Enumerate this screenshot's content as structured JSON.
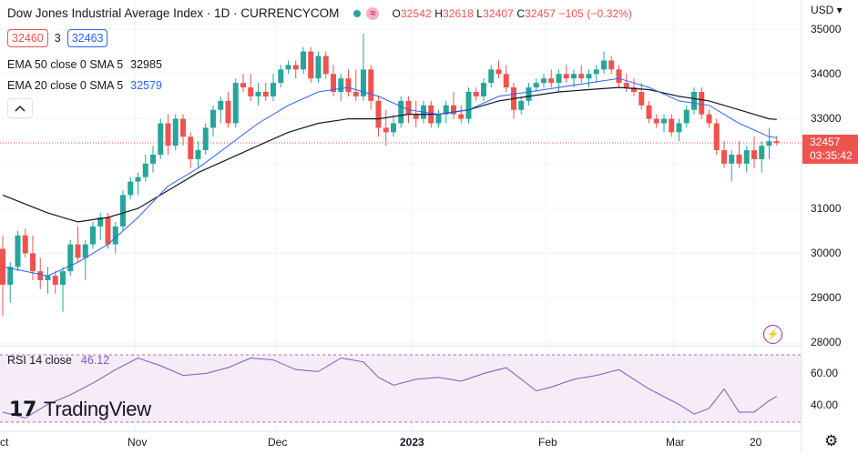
{
  "header": {
    "title": "Dow Jones Industrial Average Index · 1D · CURRENCYCOM",
    "badge": "≈",
    "open_label": "O",
    "open": "32542",
    "high_label": "H",
    "high": "32618",
    "low_label": "L",
    "low": "32407",
    "close_label": "C",
    "close": "32457",
    "change": "−105 (−0.32%)"
  },
  "trade": {
    "sell": "32460",
    "spread": "3",
    "buy": "32463"
  },
  "indicators": {
    "ema50_label": "EMA 50 close 0 SMA 5",
    "ema50_value": "32985",
    "ema20_label": "EMA 20 close 0 SMA 5",
    "ema20_value": "32579",
    "collapse_icon": "chevron-up-icon"
  },
  "price_axis": {
    "currency": "USD ▾",
    "ticks": [
      "35000",
      "34000",
      "33000",
      "31000",
      "30000",
      "29000",
      "28000"
    ],
    "tag_price": "32457",
    "tag_countdown": "03:35:42"
  },
  "rsi": {
    "label": "RSI 14 close",
    "value": "46.12",
    "ticks": [
      "60.00",
      "40.00"
    ]
  },
  "time_axis": {
    "labels": [
      "ct",
      "Nov",
      "Dec",
      "2023",
      "Feb",
      "Mar",
      "20"
    ]
  },
  "logo": {
    "mark": "17",
    "text": "TradingView"
  },
  "colors": {
    "up": "#26a69a",
    "down": "#ef5350",
    "ema20": "#2962ff",
    "ema50": "#131722",
    "rsi": "#7e57c2"
  },
  "icons": {
    "settings": "gear-icon",
    "replay": "lightning-icon"
  },
  "chart_data": {
    "type": "candlestick",
    "ylim": [
      28000,
      35000
    ],
    "candles_ohlc": [
      [
        30100,
        30400,
        28600,
        29300
      ],
      [
        29300,
        29800,
        28900,
        29700
      ],
      [
        29700,
        30500,
        29600,
        30400
      ],
      [
        30400,
        30550,
        29900,
        30000
      ],
      [
        30000,
        30400,
        29400,
        29600
      ],
      [
        29600,
        29900,
        29200,
        29400
      ],
      [
        29400,
        29700,
        29100,
        29500
      ],
      [
        29500,
        29600,
        29100,
        29300
      ],
      [
        29300,
        29700,
        28700,
        29600
      ],
      [
        29600,
        30300,
        29500,
        30200
      ],
      [
        30200,
        30600,
        29800,
        29900
      ],
      [
        29900,
        30300,
        29400,
        30200
      ],
      [
        30200,
        30700,
        30100,
        30600
      ],
      [
        30600,
        30900,
        30300,
        30800
      ],
      [
        30800,
        30900,
        30100,
        30200
      ],
      [
        30200,
        30700,
        30000,
        30600
      ],
      [
        30600,
        31400,
        30500,
        31300
      ],
      [
        31300,
        31700,
        31200,
        31600
      ],
      [
        31600,
        31800,
        31300,
        31700
      ],
      [
        31700,
        32200,
        31600,
        32000
      ],
      [
        32000,
        32400,
        31800,
        32200
      ],
      [
        32200,
        33000,
        32100,
        32900
      ],
      [
        32900,
        33100,
        32200,
        32400
      ],
      [
        32400,
        33100,
        32300,
        33000
      ],
      [
        33000,
        33100,
        32400,
        32600
      ],
      [
        32600,
        32700,
        31900,
        32100
      ],
      [
        32100,
        32500,
        31900,
        32300
      ],
      [
        32300,
        32900,
        32200,
        32800
      ],
      [
        32800,
        33300,
        32600,
        33200
      ],
      [
        33200,
        33500,
        32900,
        33400
      ],
      [
        33400,
        33600,
        32800,
        32900
      ],
      [
        32900,
        33900,
        32800,
        33800
      ],
      [
        33800,
        34000,
        33600,
        33700
      ],
      [
        33700,
        34000,
        33400,
        33500
      ],
      [
        33500,
        33800,
        33300,
        33600
      ],
      [
        33600,
        33800,
        33400,
        33500
      ],
      [
        33500,
        34000,
        33400,
        33800
      ],
      [
        33800,
        34200,
        33700,
        34100
      ],
      [
        34100,
        34300,
        34000,
        34200
      ],
      [
        34200,
        34300,
        33900,
        34100
      ],
      [
        34100,
        34600,
        34000,
        34500
      ],
      [
        34500,
        34600,
        33800,
        33900
      ],
      [
        33900,
        34500,
        33800,
        34400
      ],
      [
        34400,
        34500,
        33900,
        34000
      ],
      [
        34000,
        34200,
        33500,
        33600
      ],
      [
        33600,
        34000,
        33400,
        33900
      ],
      [
        33900,
        34100,
        33500,
        33600
      ],
      [
        33600,
        34100,
        33400,
        33500
      ],
      [
        33500,
        34900,
        33400,
        34100
      ],
      [
        34100,
        34200,
        33200,
        33400
      ],
      [
        33400,
        33500,
        32600,
        32800
      ],
      [
        32800,
        33200,
        32400,
        32700
      ],
      [
        32700,
        33100,
        32600,
        32900
      ],
      [
        32900,
        33500,
        32800,
        33400
      ],
      [
        33400,
        33500,
        32900,
        33100
      ],
      [
        33100,
        33400,
        32800,
        33000
      ],
      [
        33000,
        33400,
        32900,
        33300
      ],
      [
        33300,
        33400,
        32800,
        32900
      ],
      [
        32900,
        33200,
        32800,
        33100
      ],
      [
        33100,
        33400,
        32900,
        33300
      ],
      [
        33300,
        33600,
        33000,
        33100
      ],
      [
        33100,
        33300,
        32900,
        33000
      ],
      [
        33000,
        33700,
        32900,
        33600
      ],
      [
        33600,
        33700,
        33400,
        33500
      ],
      [
        33500,
        33900,
        33400,
        33800
      ],
      [
        33800,
        34200,
        33700,
        34100
      ],
      [
        34100,
        34300,
        33900,
        34000
      ],
      [
        34000,
        34200,
        33600,
        33700
      ],
      [
        33700,
        33800,
        33000,
        33200
      ],
      [
        33200,
        33500,
        33100,
        33400
      ],
      [
        33400,
        33800,
        33300,
        33700
      ],
      [
        33700,
        33900,
        33600,
        33800
      ],
      [
        33800,
        34000,
        33700,
        33900
      ],
      [
        33900,
        34100,
        33700,
        33800
      ],
      [
        33800,
        34100,
        33600,
        34000
      ],
      [
        34000,
        34200,
        33800,
        33900
      ],
      [
        33900,
        34100,
        33700,
        34000
      ],
      [
        34000,
        34200,
        33800,
        33900
      ],
      [
        33900,
        34100,
        33700,
        34000
      ],
      [
        34000,
        34200,
        33800,
        34100
      ],
      [
        34100,
        34500,
        34000,
        34300
      ],
      [
        34300,
        34400,
        34000,
        34100
      ],
      [
        34100,
        34200,
        33700,
        33800
      ],
      [
        33800,
        34000,
        33600,
        33700
      ],
      [
        33700,
        33900,
        33500,
        33600
      ],
      [
        33600,
        33800,
        33200,
        33300
      ],
      [
        33300,
        33400,
        32900,
        33000
      ],
      [
        33000,
        33100,
        32800,
        32900
      ],
      [
        32900,
        33100,
        32700,
        33000
      ],
      [
        33000,
        33100,
        32600,
        32700
      ],
      [
        32700,
        33000,
        32500,
        32900
      ],
      [
        32900,
        33300,
        32800,
        33200
      ],
      [
        33200,
        33700,
        33100,
        33600
      ],
      [
        33600,
        33700,
        33000,
        33100
      ],
      [
        33100,
        33200,
        32800,
        32900
      ],
      [
        32900,
        33000,
        32200,
        32300
      ],
      [
        32300,
        32500,
        31900,
        32000
      ],
      [
        32000,
        32300,
        31600,
        32200
      ],
      [
        32200,
        32500,
        31900,
        32000
      ],
      [
        32000,
        32400,
        31800,
        32300
      ],
      [
        32300,
        32600,
        31900,
        32100
      ],
      [
        32100,
        32500,
        31800,
        32400
      ],
      [
        32400,
        32800,
        32100,
        32500
      ],
      [
        32500,
        32620,
        32400,
        32457
      ]
    ],
    "ema20": [
      [
        0,
        29700
      ],
      [
        6,
        29500
      ],
      [
        10,
        29800
      ],
      [
        14,
        30200
      ],
      [
        18,
        30800
      ],
      [
        22,
        31500
      ],
      [
        26,
        31900
      ],
      [
        30,
        32400
      ],
      [
        34,
        32900
      ],
      [
        38,
        33300
      ],
      [
        42,
        33600
      ],
      [
        46,
        33700
      ],
      [
        50,
        33500
      ],
      [
        54,
        33200
      ],
      [
        58,
        33100
      ],
      [
        62,
        33200
      ],
      [
        66,
        33500
      ],
      [
        70,
        33600
      ],
      [
        74,
        33700
      ],
      [
        78,
        33800
      ],
      [
        82,
        33900
      ],
      [
        86,
        33700
      ],
      [
        90,
        33400
      ],
      [
        94,
        33300
      ],
      [
        98,
        32900
      ],
      [
        102,
        32600
      ],
      [
        103,
        32579
      ]
    ],
    "ema50": [
      [
        0,
        31300
      ],
      [
        6,
        30900
      ],
      [
        10,
        30700
      ],
      [
        14,
        30800
      ],
      [
        18,
        31000
      ],
      [
        22,
        31400
      ],
      [
        26,
        31800
      ],
      [
        30,
        32100
      ],
      [
        34,
        32400
      ],
      [
        38,
        32700
      ],
      [
        42,
        32900
      ],
      [
        46,
        33000
      ],
      [
        50,
        33000
      ],
      [
        54,
        33100
      ],
      [
        58,
        33100
      ],
      [
        62,
        33200
      ],
      [
        66,
        33400
      ],
      [
        70,
        33500
      ],
      [
        74,
        33600
      ],
      [
        78,
        33650
      ],
      [
        82,
        33700
      ],
      [
        86,
        33650
      ],
      [
        90,
        33500
      ],
      [
        94,
        33400
      ],
      [
        98,
        33200
      ],
      [
        102,
        33000
      ],
      [
        103,
        32985
      ]
    ],
    "rsi_ylim": [
      30,
      70
    ],
    "rsi": [
      [
        0,
        38
      ],
      [
        3,
        35
      ],
      [
        6,
        42
      ],
      [
        9,
        47
      ],
      [
        12,
        53
      ],
      [
        15,
        60
      ],
      [
        18,
        66
      ],
      [
        21,
        62
      ],
      [
        24,
        57
      ],
      [
        27,
        58
      ],
      [
        30,
        61
      ],
      [
        33,
        66
      ],
      [
        36,
        65
      ],
      [
        39,
        60
      ],
      [
        42,
        59
      ],
      [
        45,
        66
      ],
      [
        48,
        64
      ],
      [
        50,
        56
      ],
      [
        52,
        52
      ],
      [
        55,
        55
      ],
      [
        58,
        56
      ],
      [
        61,
        54
      ],
      [
        64,
        58
      ],
      [
        67,
        61
      ],
      [
        69,
        55
      ],
      [
        71,
        49
      ],
      [
        73,
        51
      ],
      [
        76,
        55
      ],
      [
        79,
        57
      ],
      [
        82,
        60
      ],
      [
        84,
        55
      ],
      [
        86,
        50
      ],
      [
        88,
        46
      ],
      [
        90,
        42
      ],
      [
        92,
        37
      ],
      [
        94,
        40
      ],
      [
        96,
        50
      ],
      [
        98,
        38
      ],
      [
        100,
        38
      ],
      [
        102,
        44
      ],
      [
        103,
        46.12
      ]
    ]
  }
}
